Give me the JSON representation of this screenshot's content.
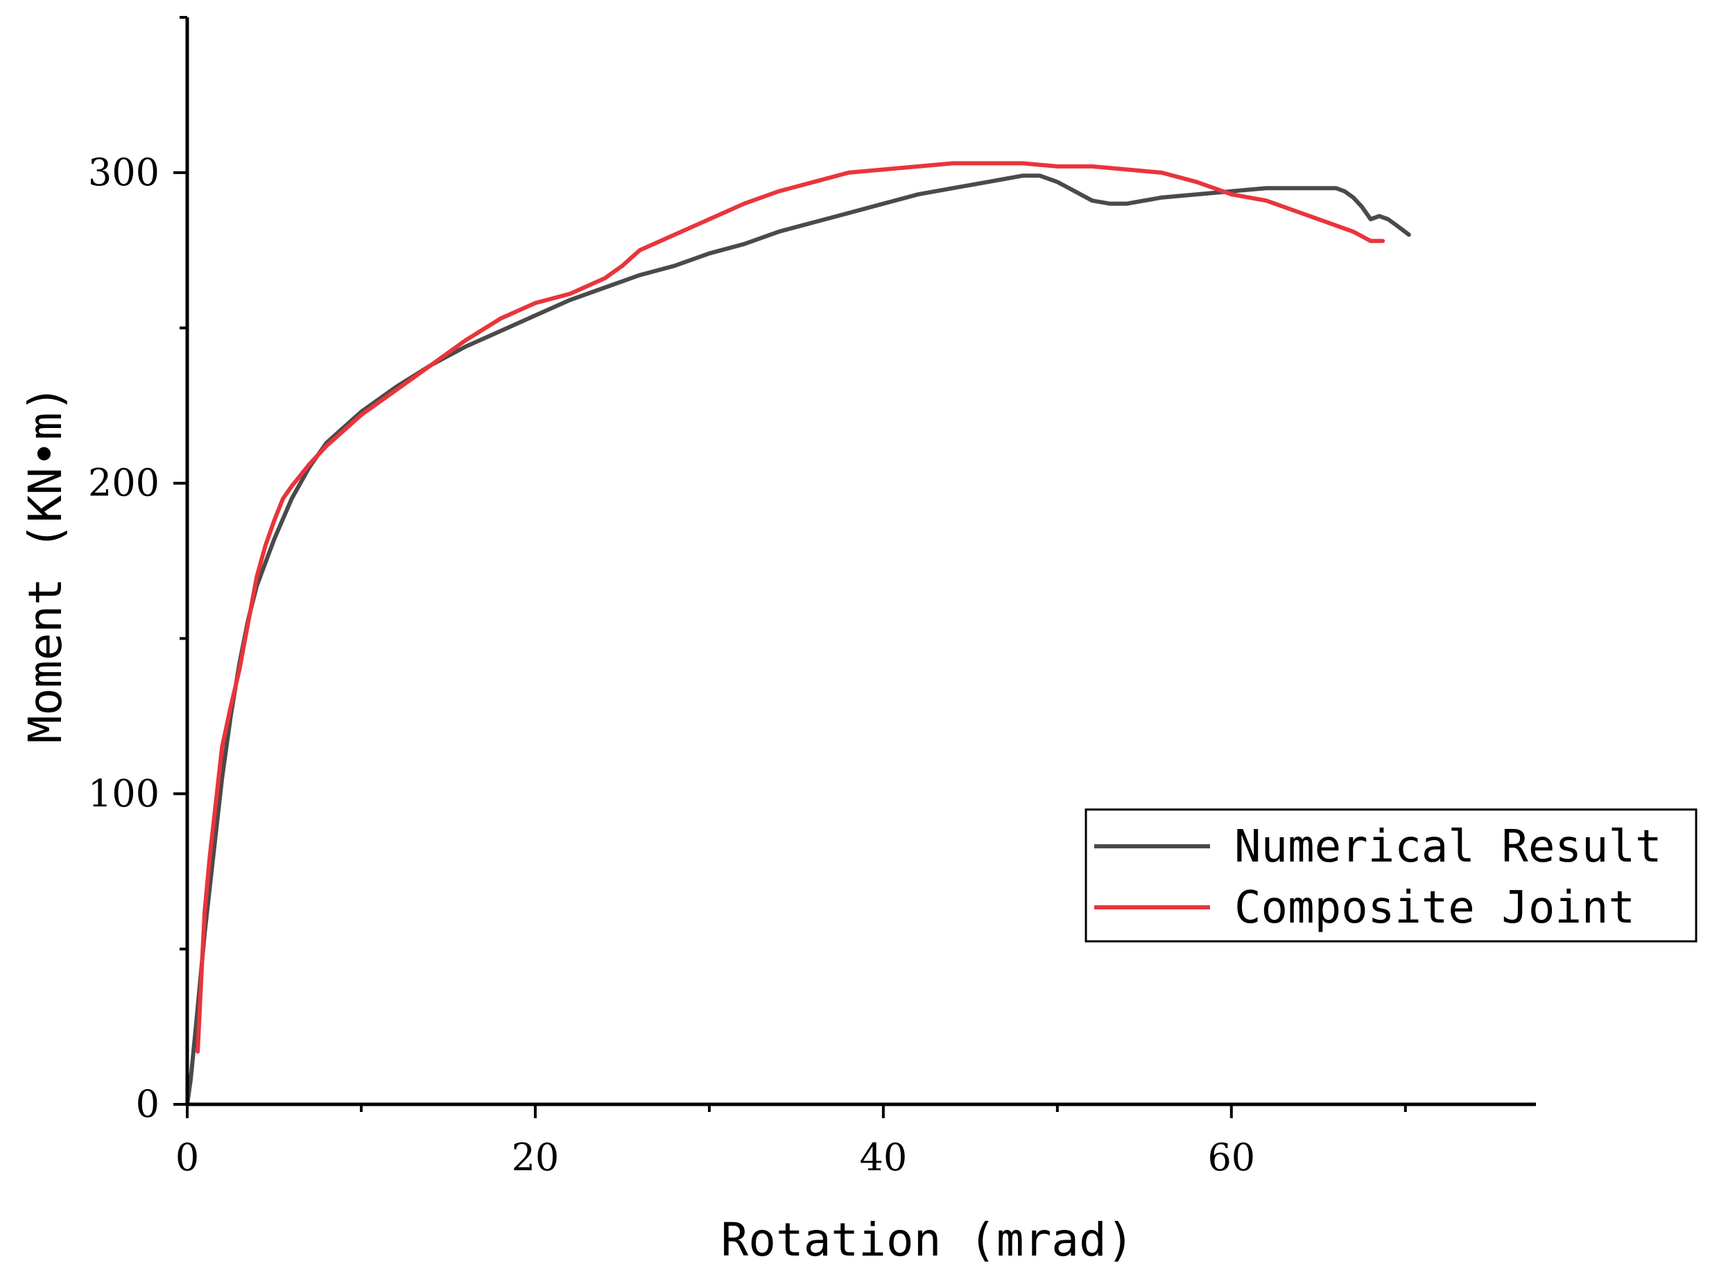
{
  "chart_data": {
    "type": "line",
    "xlabel": "Rotation (mrad)",
    "ylabel": "Moment (KN•m)",
    "xlim": [
      0,
      77.5
    ],
    "ylim": [
      0,
      350
    ],
    "x_ticks": [
      0,
      20,
      40,
      60
    ],
    "y_ticks": [
      0,
      100,
      200,
      300
    ],
    "x_tick_labels": [
      "0",
      "20",
      "40",
      "60"
    ],
    "y_tick_labels": [
      "0",
      "100",
      "200",
      "300"
    ],
    "grid": false,
    "legend_position": "lower-right",
    "series": [
      {
        "name": "Numerical Result",
        "color": "#4a4a4a",
        "points": [
          [
            0,
            0
          ],
          [
            0.2,
            8
          ],
          [
            0.5,
            25
          ],
          [
            1.0,
            55
          ],
          [
            1.5,
            80
          ],
          [
            2.0,
            105
          ],
          [
            2.5,
            125
          ],
          [
            3.0,
            142
          ],
          [
            3.5,
            156
          ],
          [
            4.0,
            167
          ],
          [
            5.0,
            182
          ],
          [
            6.0,
            195
          ],
          [
            7.0,
            205
          ],
          [
            8.0,
            213
          ],
          [
            9.0,
            218
          ],
          [
            10.0,
            223
          ],
          [
            12.0,
            231
          ],
          [
            14.0,
            238
          ],
          [
            16.0,
            244
          ],
          [
            18.0,
            249
          ],
          [
            20.0,
            254
          ],
          [
            22.0,
            259
          ],
          [
            24.0,
            263
          ],
          [
            26.0,
            267
          ],
          [
            28.0,
            270
          ],
          [
            30.0,
            274
          ],
          [
            32.0,
            277
          ],
          [
            34.0,
            281
          ],
          [
            36.0,
            284
          ],
          [
            38.0,
            287
          ],
          [
            40.0,
            290
          ],
          [
            42.0,
            293
          ],
          [
            44.0,
            295
          ],
          [
            46.0,
            297
          ],
          [
            48.0,
            299
          ],
          [
            49.0,
            299
          ],
          [
            50.0,
            297
          ],
          [
            51.0,
            294
          ],
          [
            52.0,
            291
          ],
          [
            53.0,
            290
          ],
          [
            54.0,
            290
          ],
          [
            56.0,
            292
          ],
          [
            58.0,
            293
          ],
          [
            60.0,
            294
          ],
          [
            62.0,
            295
          ],
          [
            64.0,
            295
          ],
          [
            66.0,
            295
          ],
          [
            66.5,
            294
          ],
          [
            67.0,
            292
          ],
          [
            67.5,
            289
          ],
          [
            68.0,
            285
          ],
          [
            68.5,
            286
          ],
          [
            69.0,
            285
          ],
          [
            69.5,
            283
          ],
          [
            70.2,
            280
          ]
        ]
      },
      {
        "name": "Composite Joint",
        "color": "#e8353b",
        "points": [
          [
            0.6,
            17
          ],
          [
            0.8,
            40
          ],
          [
            1.0,
            62
          ],
          [
            1.3,
            80
          ],
          [
            1.6,
            95
          ],
          [
            2.0,
            115
          ],
          [
            2.5,
            128
          ],
          [
            3.0,
            140
          ],
          [
            3.5,
            155
          ],
          [
            4.0,
            170
          ],
          [
            4.5,
            180
          ],
          [
            5.0,
            188
          ],
          [
            5.5,
            195
          ],
          [
            6.0,
            199
          ],
          [
            7.0,
            206
          ],
          [
            8.0,
            212
          ],
          [
            9.0,
            217
          ],
          [
            10.0,
            222
          ],
          [
            12.0,
            230
          ],
          [
            14.0,
            238
          ],
          [
            16.0,
            246
          ],
          [
            18.0,
            253
          ],
          [
            20.0,
            258
          ],
          [
            22.0,
            261
          ],
          [
            24.0,
            266
          ],
          [
            25.0,
            270
          ],
          [
            26.0,
            275
          ],
          [
            28.0,
            280
          ],
          [
            30.0,
            285
          ],
          [
            32.0,
            290
          ],
          [
            34.0,
            294
          ],
          [
            36.0,
            297
          ],
          [
            38.0,
            300
          ],
          [
            40.0,
            301
          ],
          [
            42.0,
            302
          ],
          [
            44.0,
            303
          ],
          [
            46.0,
            303
          ],
          [
            48.0,
            303
          ],
          [
            50.0,
            302
          ],
          [
            52.0,
            302
          ],
          [
            54.0,
            301
          ],
          [
            56.0,
            300
          ],
          [
            58.0,
            297
          ],
          [
            59.0,
            295
          ],
          [
            60.0,
            293
          ],
          [
            62.0,
            291
          ],
          [
            64.0,
            287
          ],
          [
            66.0,
            283
          ],
          [
            67.0,
            281
          ],
          [
            68.0,
            278
          ],
          [
            68.7,
            278
          ]
        ]
      }
    ]
  }
}
